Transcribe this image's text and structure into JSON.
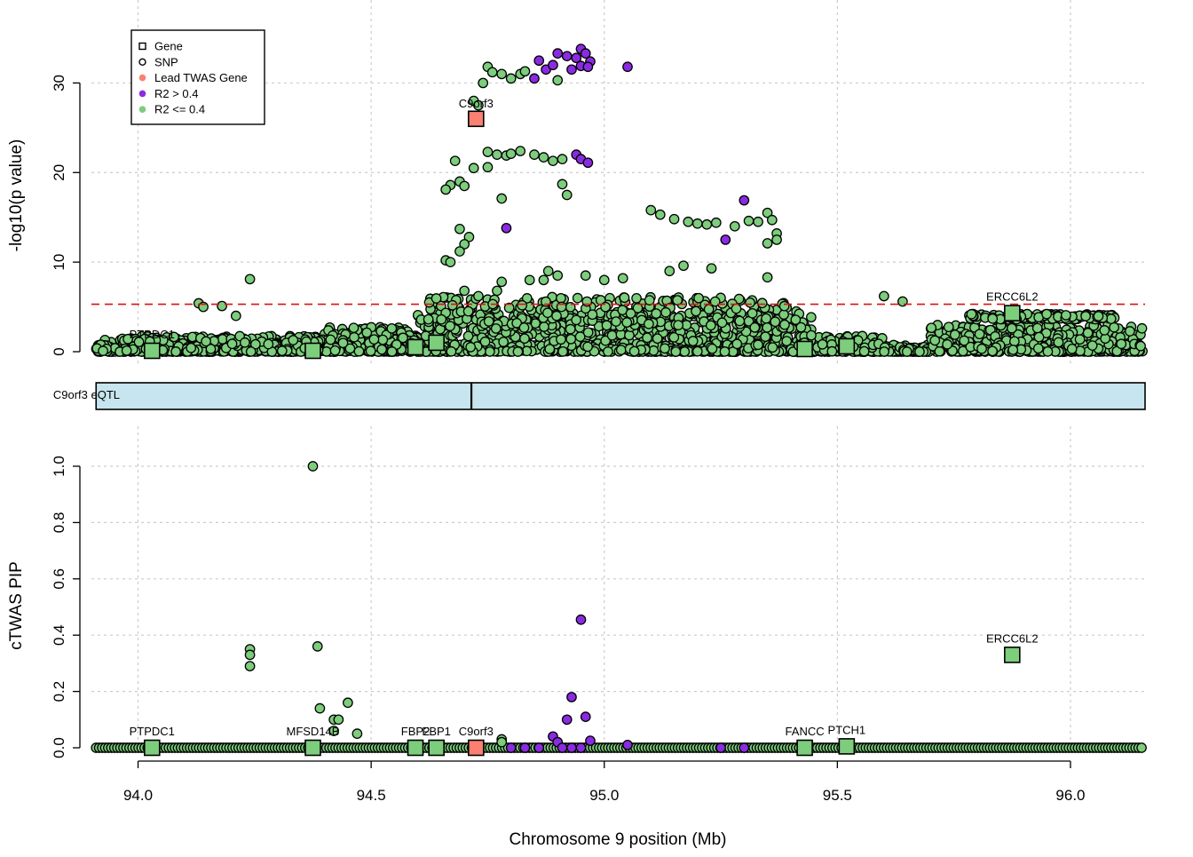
{
  "colors": {
    "lead": "#fa8072",
    "r2_high": "#8a2be2",
    "r2_low": "#7ccd7c",
    "threshold": "#dd1111",
    "eqtl_fill": "#c6e5ef"
  },
  "chart_data": [
    {
      "type": "scatter",
      "panel": "top",
      "ylabel": "-log10(p value)",
      "ylim": [
        0,
        35
      ],
      "yticks": [
        0,
        10,
        20,
        30
      ],
      "xlim": [
        93.9,
        96.16
      ],
      "threshold_line": 5.3,
      "legend": {
        "placement": "top-left",
        "entries": [
          {
            "label": "Gene",
            "symbol": "open-square"
          },
          {
            "label": "SNP",
            "symbol": "open-circle"
          },
          {
            "label": "Lead TWAS Gene",
            "symbol": "filled-circle",
            "color": "#fa8072"
          },
          {
            "label": "R2 > 0.4",
            "symbol": "filled-circle",
            "color": "#8a2be2"
          },
          {
            "label": "R2 <= 0.4",
            "symbol": "filled-circle",
            "color": "#7ccd7c"
          }
        ]
      },
      "genes": [
        {
          "name": "PTPDC1",
          "x": 94.03,
          "y": 0.1,
          "lead": false,
          "labeled": true
        },
        {
          "name": "MFSD14B",
          "x": 94.375,
          "y": 0.1,
          "lead": false,
          "labeled": false
        },
        {
          "name": "FBP2",
          "x": 94.595,
          "y": 0.5,
          "lead": false,
          "labeled": false
        },
        {
          "name": "FBP1",
          "x": 94.64,
          "y": 1.0,
          "lead": false,
          "labeled": false
        },
        {
          "name": "C9orf3",
          "x": 94.725,
          "y": 26.0,
          "lead": true,
          "labeled": true
        },
        {
          "name": "FANCC",
          "x": 95.43,
          "y": 0.3,
          "lead": false,
          "labeled": false
        },
        {
          "name": "PTCH1",
          "x": 95.52,
          "y": 0.6,
          "lead": false,
          "labeled": false
        },
        {
          "name": "ERCC6L2",
          "x": 95.875,
          "y": 4.3,
          "lead": false,
          "labeled": true
        }
      ],
      "snps_high_r2": [
        [
          94.86,
          32.5
        ],
        [
          94.875,
          31.5
        ],
        [
          94.9,
          33.3
        ],
        [
          94.92,
          33.0
        ],
        [
          94.93,
          31.5
        ],
        [
          94.94,
          32.8
        ],
        [
          94.95,
          33.8
        ],
        [
          94.96,
          33.3
        ],
        [
          94.97,
          32.4
        ],
        [
          94.95,
          31.9
        ],
        [
          94.965,
          31.8
        ],
        [
          94.89,
          32.0
        ],
        [
          94.85,
          30.5
        ],
        [
          95.05,
          31.8
        ],
        [
          94.94,
          22.0
        ],
        [
          94.95,
          21.5
        ],
        [
          94.965,
          21.1
        ],
        [
          94.79,
          13.8
        ],
        [
          95.3,
          16.9
        ],
        [
          95.26,
          12.5
        ]
      ],
      "snps_low_r2_notable": [
        [
          94.74,
          30.0
        ],
        [
          94.75,
          31.8
        ],
        [
          94.76,
          31.2
        ],
        [
          94.78,
          31.0
        ],
        [
          94.8,
          30.5
        ],
        [
          94.82,
          31.0
        ],
        [
          94.83,
          31.3
        ],
        [
          94.9,
          30.3
        ],
        [
          94.72,
          28.0
        ],
        [
          94.73,
          27.5
        ],
        [
          94.75,
          22.3
        ],
        [
          94.77,
          22.0
        ],
        [
          94.79,
          21.9
        ],
        [
          94.8,
          22.1
        ],
        [
          94.82,
          22.4
        ],
        [
          94.85,
          22.0
        ],
        [
          94.87,
          21.7
        ],
        [
          94.89,
          21.3
        ],
        [
          94.91,
          21.5
        ],
        [
          94.68,
          21.3
        ],
        [
          94.75,
          20.6
        ],
        [
          94.72,
          20.5
        ],
        [
          94.67,
          18.6
        ],
        [
          94.69,
          19.0
        ],
        [
          94.66,
          18.1
        ],
        [
          94.7,
          18.5
        ],
        [
          94.91,
          18.7
        ],
        [
          94.92,
          17.5
        ],
        [
          94.78,
          17.1
        ],
        [
          95.1,
          15.8
        ],
        [
          95.12,
          15.3
        ],
        [
          95.15,
          14.8
        ],
        [
          95.18,
          14.5
        ],
        [
          95.2,
          14.3
        ],
        [
          95.22,
          14.2
        ],
        [
          95.24,
          14.4
        ],
        [
          95.28,
          14.0
        ],
        [
          95.31,
          14.6
        ],
        [
          95.33,
          14.5
        ],
        [
          95.35,
          15.5
        ],
        [
          95.36,
          14.7
        ],
        [
          95.37,
          13.2
        ],
        [
          95.35,
          12.1
        ],
        [
          95.37,
          12.5
        ],
        [
          94.69,
          13.7
        ],
        [
          94.71,
          12.8
        ],
        [
          94.7,
          12.0
        ],
        [
          94.66,
          10.2
        ],
        [
          94.67,
          10.0
        ],
        [
          94.69,
          11.2
        ],
        [
          94.88,
          9.0
        ],
        [
          94.87,
          8.0
        ],
        [
          94.9,
          8.5
        ],
        [
          94.96,
          8.5
        ],
        [
          95.0,
          8.0
        ],
        [
          95.04,
          8.2
        ],
        [
          95.14,
          9.0
        ],
        [
          95.17,
          9.6
        ],
        [
          95.23,
          9.3
        ],
        [
          95.35,
          8.3
        ],
        [
          94.78,
          7.8
        ],
        [
          94.77,
          6.8
        ],
        [
          94.84,
          8.0
        ],
        [
          94.7,
          6.8
        ],
        [
          94.73,
          6.2
        ],
        [
          94.24,
          8.1
        ],
        [
          95.6,
          6.2
        ],
        [
          95.64,
          5.6
        ],
        [
          94.13,
          5.4
        ],
        [
          94.14,
          5.0
        ],
        [
          94.18,
          5.1
        ],
        [
          94.21,
          4.0
        ]
      ]
    },
    {
      "type": "scatter",
      "panel": "eqtl-track",
      "label": "C9orf3 eQTL",
      "range": [
        93.91,
        96.16
      ],
      "marker": 94.715
    },
    {
      "type": "scatter",
      "panel": "bottom",
      "title": "",
      "xlabel": "Chromosome 9 position (Mb)",
      "ylabel": "cTWAS PIP",
      "ylim": [
        0,
        1.0
      ],
      "yticks": [
        "0.0",
        "0.2",
        "0.4",
        "0.6",
        "0.8",
        "1.0"
      ],
      "xlim": [
        93.9,
        96.16
      ],
      "xticks": [
        "94.0",
        "94.5",
        "95.0",
        "95.5",
        "96.0"
      ],
      "genes": [
        {
          "name": "PTPDC1",
          "x": 94.03,
          "y": 0.0,
          "lead": false
        },
        {
          "name": "MFSD14B",
          "x": 94.375,
          "y": 0.0,
          "lead": false
        },
        {
          "name": "FBP2",
          "x": 94.595,
          "y": 0.0,
          "lead": false
        },
        {
          "name": "FBP1",
          "x": 94.64,
          "y": 0.0,
          "lead": false
        },
        {
          "name": "C9orf3",
          "x": 94.725,
          "y": 0.0,
          "lead": true
        },
        {
          "name": "FANCC",
          "x": 95.43,
          "y": 0.0,
          "lead": false
        },
        {
          "name": "PTCH1",
          "x": 95.52,
          "y": 0.005,
          "lead": false
        },
        {
          "name": "ERCC6L2",
          "x": 95.875,
          "y": 0.33,
          "lead": false
        }
      ],
      "snps_low_r2": [
        [
          94.375,
          1.0
        ],
        [
          94.24,
          0.35
        ],
        [
          94.24,
          0.33
        ],
        [
          94.24,
          0.29
        ],
        [
          94.385,
          0.36
        ],
        [
          94.39,
          0.14
        ],
        [
          94.42,
          0.1
        ],
        [
          94.43,
          0.1
        ],
        [
          94.42,
          0.06
        ],
        [
          94.45,
          0.16
        ],
        [
          94.47,
          0.05
        ],
        [
          94.78,
          0.03
        ],
        [
          94.78,
          0.02
        ]
      ],
      "snps_high_r2": [
        [
          94.95,
          0.455
        ],
        [
          94.93,
          0.18
        ],
        [
          94.92,
          0.1
        ],
        [
          94.96,
          0.11
        ],
        [
          94.89,
          0.04
        ],
        [
          94.97,
          0.025
        ],
        [
          94.9,
          0.02
        ],
        [
          95.05,
          0.01
        ],
        [
          94.8,
          0.0
        ],
        [
          94.83,
          0.0
        ],
        [
          94.86,
          0.0
        ],
        [
          94.91,
          0.0
        ],
        [
          94.93,
          0.0
        ],
        [
          94.95,
          0.0
        ],
        [
          95.25,
          0.0
        ],
        [
          95.3,
          0.0
        ]
      ]
    }
  ]
}
